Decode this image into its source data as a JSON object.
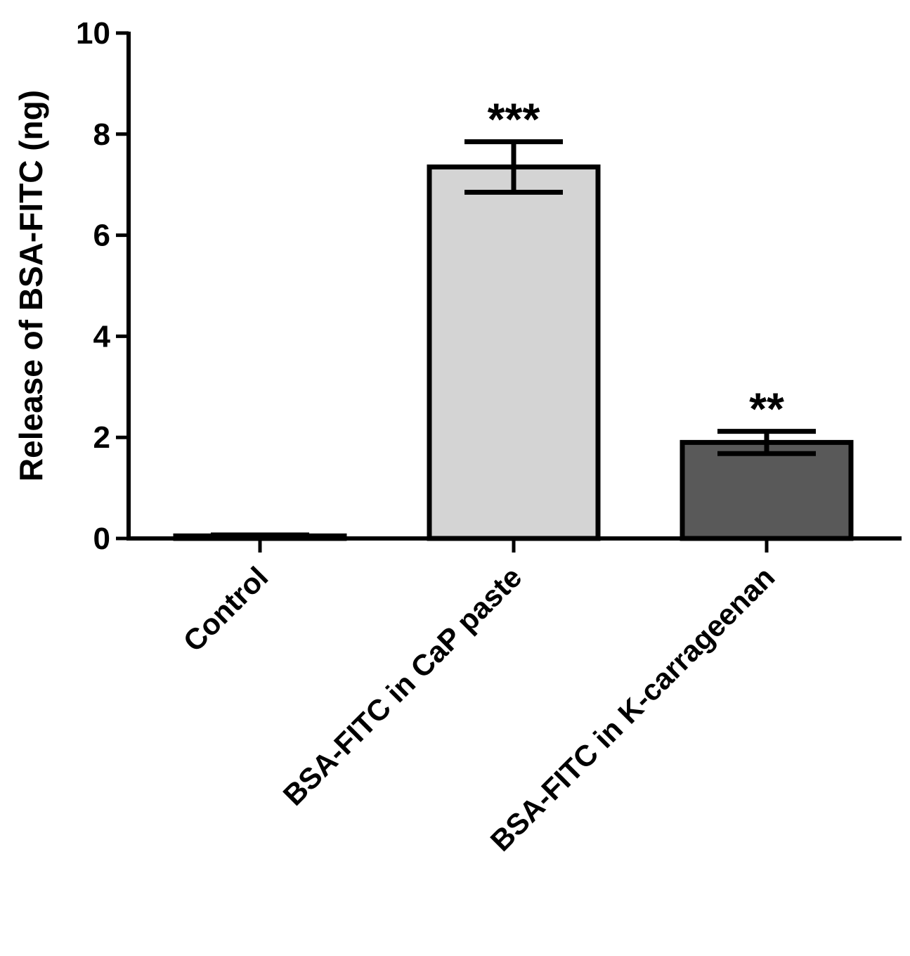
{
  "chart_data": {
    "type": "bar",
    "title": "",
    "xlabel": "",
    "ylabel": "Release of BSA-FITC (ng)",
    "ylim": [
      0,
      10
    ],
    "yticks": [
      0,
      2,
      4,
      6,
      8,
      10
    ],
    "categories": [
      "Control",
      "BSA-FITC in CaP paste",
      "BSA-FITC in K-carrageenan"
    ],
    "values": [
      0.05,
      7.35,
      1.9
    ],
    "errors": [
      0.02,
      0.5,
      0.22
    ],
    "significance": [
      "",
      "***",
      "**"
    ],
    "colors": [
      "#ffffff",
      "#d4d4d4",
      "#595959"
    ],
    "grid": false
  }
}
